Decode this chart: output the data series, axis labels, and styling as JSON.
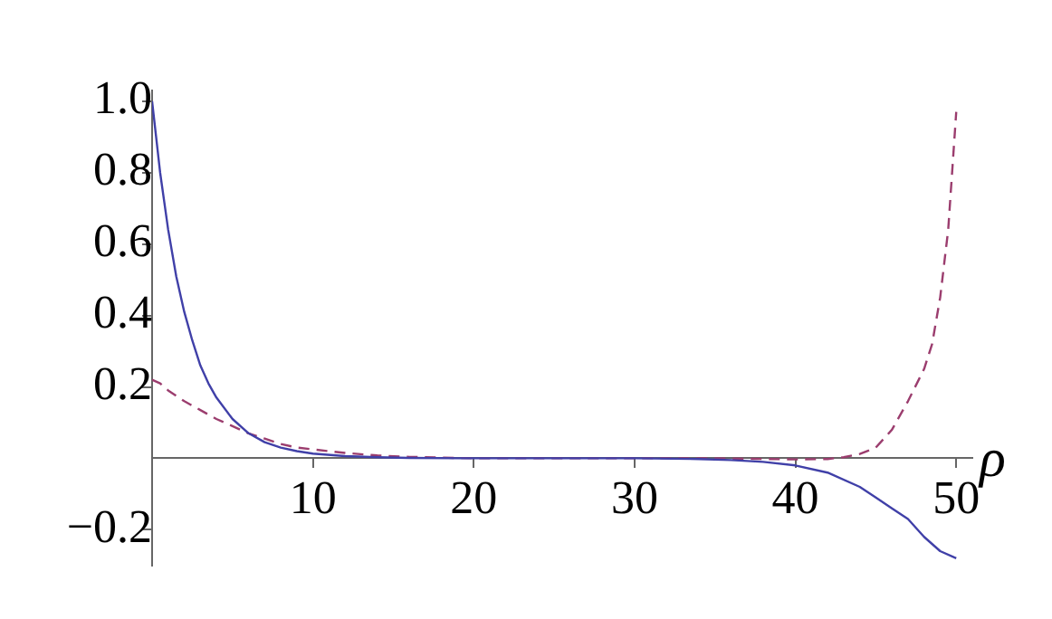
{
  "chart_data": {
    "type": "line",
    "xlabel": "ρ",
    "xlim": [
      0,
      51
    ],
    "ylim": [
      -0.3,
      1.03
    ],
    "xticks": [
      10,
      20,
      30,
      40,
      50
    ],
    "yticks": [
      {
        "value": -0.2,
        "label": "−0.2"
      },
      {
        "value": 0.2,
        "label": "0.2"
      },
      {
        "value": 0.4,
        "label": "0.4"
      },
      {
        "value": 0.6,
        "label": "0.6"
      },
      {
        "value": 0.8,
        "label": "0.8"
      },
      {
        "value": 1,
        "label": "1.0"
      }
    ],
    "grid": false,
    "legend": false,
    "series": [
      {
        "color": "#4040a8",
        "line_style": "solid",
        "x": [
          0,
          0.5,
          1,
          1.5,
          2,
          2.5,
          3,
          3.5,
          4,
          5,
          6,
          7,
          8,
          9,
          10,
          12,
          14,
          16,
          20,
          25,
          30,
          34,
          36,
          38,
          40,
          42,
          44,
          45,
          46,
          47,
          48,
          49,
          50
        ],
        "values": [
          1.0,
          0.8,
          0.64,
          0.51,
          0.41,
          0.33,
          0.26,
          0.21,
          0.17,
          0.11,
          0.07,
          0.045,
          0.03,
          0.02,
          0.013,
          0.006,
          0.003,
          0.001,
          0,
          0,
          0,
          -0.002,
          -0.005,
          -0.01,
          -0.02,
          -0.04,
          -0.08,
          -0.11,
          -0.14,
          -0.17,
          -0.22,
          -0.26,
          -0.28
        ]
      },
      {
        "color": "#9b3d6e",
        "line_style": "dashed",
        "x": [
          0,
          0.5,
          1,
          2,
          3,
          4,
          5,
          6,
          7,
          8,
          9,
          10,
          12,
          14,
          16,
          20,
          25,
          30,
          35,
          40,
          42,
          43,
          44,
          45,
          46,
          47,
          48,
          48.5,
          49,
          49.5,
          50
        ],
        "values": [
          0.22,
          0.21,
          0.19,
          0.16,
          0.135,
          0.11,
          0.09,
          0.07,
          0.055,
          0.04,
          0.03,
          0.025,
          0.015,
          0.008,
          0.004,
          0,
          0,
          0,
          0,
          -0.003,
          -0.002,
          0.003,
          0.012,
          0.03,
          0.08,
          0.16,
          0.25,
          0.32,
          0.45,
          0.64,
          0.97
        ]
      }
    ]
  }
}
